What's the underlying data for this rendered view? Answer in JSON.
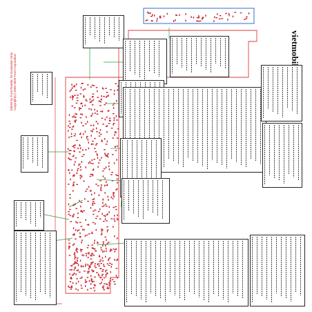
{
  "watermark": {
    "brand": "vietmobile.vn",
    "disclaimer": [
      "Edited by Foxit Reader, for Evaluation Only.",
      "Copyright(C) 2005-2009 Foxit Corporation"
    ]
  },
  "colors": {
    "board_outline": "#e23a3a",
    "component": "#c8202a",
    "leader_line": "#2a9a3a",
    "box_border": "#222222",
    "highlight_box": "#2f6fd0"
  }
}
